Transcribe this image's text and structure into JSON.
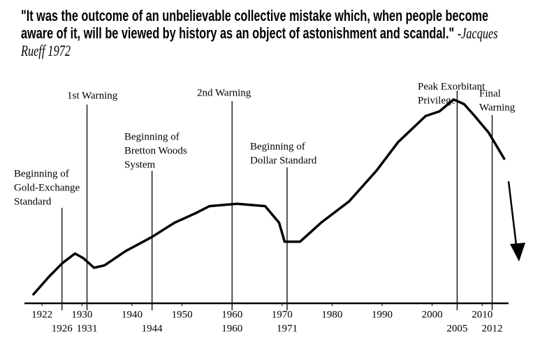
{
  "chart_data": {
    "type": "line",
    "title": "\"It was the outcome of an unbelievable collective mistake which, when people become aware of it, will be viewed by history as an object of astonishment and scandal.\"",
    "attribution": "-Jacques Rueff 1972",
    "color": "#000000",
    "x": [
      1920.3,
      1923.3,
      1926.1,
      1928.6,
      1930.3,
      1932.4,
      1934.5,
      1938.7,
      1944,
      1948.5,
      1952.7,
      1955.5,
      1961,
      1966.6,
      1969.4,
      1970.5,
      1973.6,
      1977.8,
      1983.4,
      1988.9,
      1993.2,
      1998.7,
      2001.5,
      2004.3,
      2006.4,
      2008.5,
      2011.3,
      2014.4
    ],
    "values": [
      3.8,
      11,
      17,
      21,
      19,
      15,
      16,
      22,
      28,
      34,
      38,
      41,
      42,
      41,
      34,
      26,
      26,
      34,
      43,
      56,
      68,
      79,
      81,
      86,
      84,
      79,
      72,
      61
    ],
    "xlim": [
      1915,
      2015
    ],
    "ylim": [
      0,
      100
    ],
    "xticks": [
      1922,
      1930,
      1940,
      1950,
      1960,
      1970,
      1980,
      1990,
      2000,
      2010
    ],
    "events": [
      {
        "x": 1926,
        "lines": [
          "Beginning of",
          "Gold-Exchange",
          "Standard"
        ]
      },
      {
        "x": 1931,
        "lines": [
          "1st Warning"
        ]
      },
      {
        "x": 1944,
        "lines": [
          "Beginning of",
          "Bretton Woods",
          "System"
        ]
      },
      {
        "x": 1960,
        "lines": [
          "2nd Warning"
        ]
      },
      {
        "x": 1971,
        "lines": [
          "Beginning of",
          "Dollar Standard"
        ]
      },
      {
        "x": 2005,
        "lines": [
          "Peak Exorbitant",
          "Privilege"
        ]
      },
      {
        "x": 2012,
        "lines": [
          "Final",
          "Warning"
        ]
      }
    ]
  }
}
